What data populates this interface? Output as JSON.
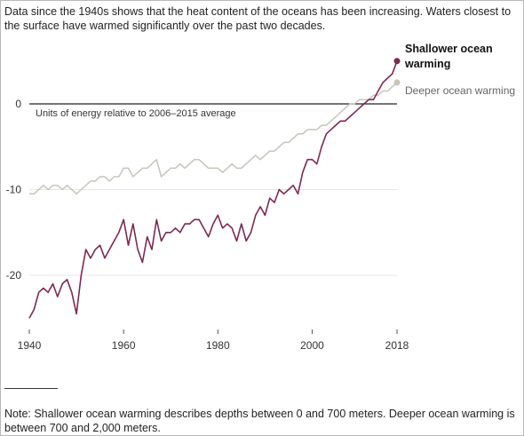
{
  "intro": "Data since the 1940s shows that the heat content of the oceans has been increasing. Waters closest to the surface have warmed significantly over the past two decades.",
  "note": "Note: Shallower ocean warming describes depths between 0 and 700 meters. Deeper ocean warming is between 700 and 2,000 meters.",
  "colors": {
    "shallow": "#7a2a52",
    "deep": "#c8c4bd",
    "grid": "#e4e4e4",
    "zero_line": "#222222",
    "tick_text": "#333333"
  },
  "chart_data": {
    "type": "line",
    "xlabel": "",
    "ylabel": "",
    "xlim": [
      1940,
      2018
    ],
    "ylim": [
      -26,
      7
    ],
    "x_ticks": [
      1940,
      1960,
      1980,
      2000,
      2018
    ],
    "x_tick_labels": [
      "1940",
      "1960",
      "1980",
      "2000",
      "2018"
    ],
    "y_ticks": [
      0,
      -10,
      -20
    ],
    "y_tick_labels": [
      "0",
      "-10",
      "-20"
    ],
    "grid": true,
    "zero_line_annotation": "Units of energy relative to  2006–2015 average",
    "series": [
      {
        "name": "Shallower ocean warming",
        "label_lines": [
          "Shallower ocean",
          "warming"
        ],
        "color": "#7a2a52",
        "end_marker": true,
        "x": [
          1940,
          1941,
          1942,
          1943,
          1944,
          1945,
          1946,
          1947,
          1948,
          1949,
          1950,
          1951,
          1952,
          1953,
          1954,
          1955,
          1956,
          1957,
          1958,
          1959,
          1960,
          1961,
          1962,
          1963,
          1964,
          1965,
          1966,
          1967,
          1968,
          1969,
          1970,
          1971,
          1972,
          1973,
          1974,
          1975,
          1976,
          1977,
          1978,
          1979,
          1980,
          1981,
          1982,
          1983,
          1984,
          1985,
          1986,
          1987,
          1988,
          1989,
          1990,
          1991,
          1992,
          1993,
          1994,
          1995,
          1996,
          1997,
          1998,
          1999,
          2000,
          2001,
          2002,
          2003,
          2004,
          2005,
          2006,
          2007,
          2008,
          2009,
          2010,
          2011,
          2012,
          2013,
          2014,
          2015,
          2016,
          2017,
          2018
        ],
        "values": [
          -25,
          -24,
          -22,
          -21.5,
          -22,
          -21,
          -22.5,
          -21,
          -20.5,
          -22,
          -24.5,
          -20,
          -17,
          -18,
          -17,
          -16.5,
          -18,
          -17,
          -16,
          -15,
          -13.5,
          -16.5,
          -14,
          -17,
          -18.5,
          -15.5,
          -17,
          -13.5,
          -16,
          -15,
          -15,
          -14.5,
          -15,
          -14,
          -14,
          -13.5,
          -13.5,
          -14.5,
          -15.5,
          -14,
          -13,
          -14.5,
          -14,
          -14.5,
          -16,
          -14,
          -16,
          -15,
          -13,
          -12,
          -13,
          -11,
          -11.5,
          -10,
          -10.5,
          -10,
          -9.5,
          -10.5,
          -8,
          -6.5,
          -6.5,
          -7,
          -5,
          -3.5,
          -3,
          -2.5,
          -2,
          -2,
          -1.5,
          -1,
          -0.5,
          0,
          0.5,
          0.5,
          1.5,
          2.5,
          3,
          3.5,
          5
        ]
      },
      {
        "name": "Deeper ocean warming",
        "label_lines": [
          "Deeper ocean warming"
        ],
        "color": "#c8c4bd",
        "end_marker": true,
        "x": [
          1940,
          1941,
          1942,
          1943,
          1944,
          1945,
          1946,
          1947,
          1948,
          1949,
          1950,
          1951,
          1952,
          1953,
          1954,
          1955,
          1956,
          1957,
          1958,
          1959,
          1960,
          1961,
          1962,
          1963,
          1964,
          1965,
          1966,
          1967,
          1968,
          1969,
          1970,
          1971,
          1972,
          1973,
          1974,
          1975,
          1976,
          1977,
          1978,
          1979,
          1980,
          1981,
          1982,
          1983,
          1984,
          1985,
          1986,
          1987,
          1988,
          1989,
          1990,
          1991,
          1992,
          1993,
          1994,
          1995,
          1996,
          1997,
          1998,
          1999,
          2000,
          2001,
          2002,
          2003,
          2004,
          2005,
          2006,
          2007,
          2008,
          2009,
          2010,
          2011,
          2012,
          2013,
          2014,
          2015,
          2016,
          2017,
          2018
        ],
        "values": [
          -10.5,
          -10.5,
          -10,
          -9.5,
          -10,
          -9.5,
          -9.5,
          -10,
          -9.5,
          -10,
          -10.5,
          -10,
          -9.5,
          -9,
          -9,
          -8.5,
          -8.5,
          -9,
          -8.5,
          -8.5,
          -7.5,
          -7.5,
          -8.5,
          -8,
          -7.5,
          -7.5,
          -7,
          -6.5,
          -8.5,
          -8,
          -7.5,
          -7.5,
          -7,
          -7.5,
          -7,
          -6.5,
          -6.5,
          -7,
          -7.5,
          -7.5,
          -7.5,
          -8,
          -7.5,
          -7,
          -7.5,
          -7.5,
          -7,
          -6.5,
          -6,
          -6.5,
          -6,
          -5.5,
          -5.5,
          -5,
          -4.5,
          -4.5,
          -4,
          -3.5,
          -3.5,
          -3,
          -3,
          -3,
          -2.5,
          -2.5,
          -2,
          -1.5,
          -1,
          -0.5,
          0,
          0,
          0.5,
          0.5,
          0.5,
          1,
          1,
          1.5,
          1.5,
          2,
          2.5
        ]
      }
    ]
  }
}
